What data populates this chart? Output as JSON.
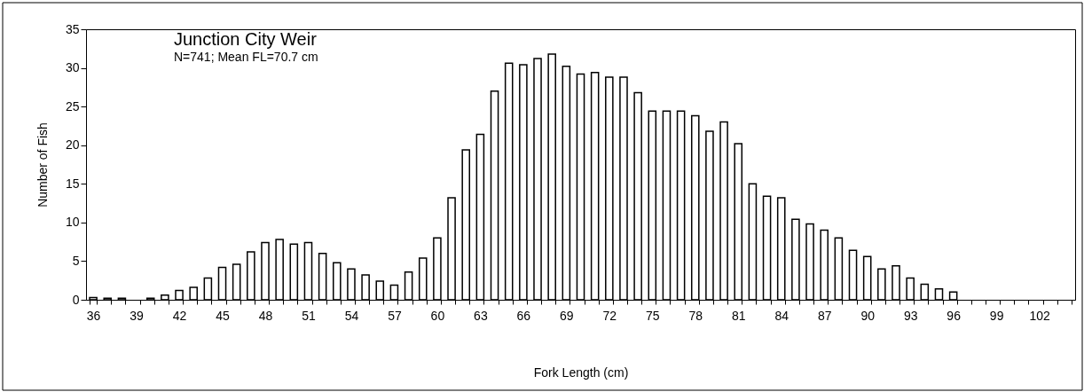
{
  "chart_data": {
    "type": "bar",
    "annotations": [
      "Junction City Weir",
      "N=741; Mean FL=70.7 cm"
    ],
    "xlabel": "Fork Length (cm)",
    "ylabel": "Number of Fish",
    "categories": [
      "36",
      null,
      null,
      "39",
      null,
      null,
      "42",
      null,
      null,
      "45",
      null,
      null,
      "48",
      null,
      null,
      "51",
      null,
      null,
      "54",
      null,
      null,
      "57",
      null,
      null,
      "60",
      null,
      null,
      "63",
      null,
      null,
      "66",
      null,
      null,
      "69",
      null,
      null,
      "72",
      null,
      null,
      "75",
      null,
      null,
      "78",
      null,
      null,
      "81",
      null,
      null,
      "84",
      null,
      null,
      "87",
      null,
      null,
      "90",
      null,
      null,
      "93",
      null,
      null,
      "96",
      null,
      null,
      "99",
      null,
      null,
      "102",
      null,
      null
    ],
    "values": [
      0.3,
      0.2,
      0.2,
      0,
      0.2,
      0.6,
      1.2,
      1.6,
      2.8,
      4.2,
      4.6,
      6.2,
      7.4,
      7.8,
      7.2,
      7.4,
      6.0,
      4.8,
      4.0,
      3.2,
      2.4,
      1.9,
      3.6,
      5.4,
      8.0,
      13.2,
      19.4,
      21.4,
      27.0,
      30.6,
      30.4,
      31.2,
      31.8,
      30.2,
      29.2,
      29.4,
      28.8,
      28.8,
      26.8,
      24.4,
      24.4,
      24.4,
      23.8,
      21.8,
      23.0,
      20.2,
      15.0,
      13.4,
      13.2,
      10.4,
      9.8,
      9.0,
      8.0,
      6.4,
      5.6,
      4.0,
      4.4,
      2.8,
      2.0,
      1.4,
      1.0,
      0,
      0,
      0,
      0,
      0,
      0,
      0,
      0
    ],
    "color": "#ffffff",
    "ylim": [
      0,
      35
    ],
    "yticks": [
      0,
      5,
      10,
      15,
      20,
      25,
      30,
      35
    ],
    "grid": false
  }
}
